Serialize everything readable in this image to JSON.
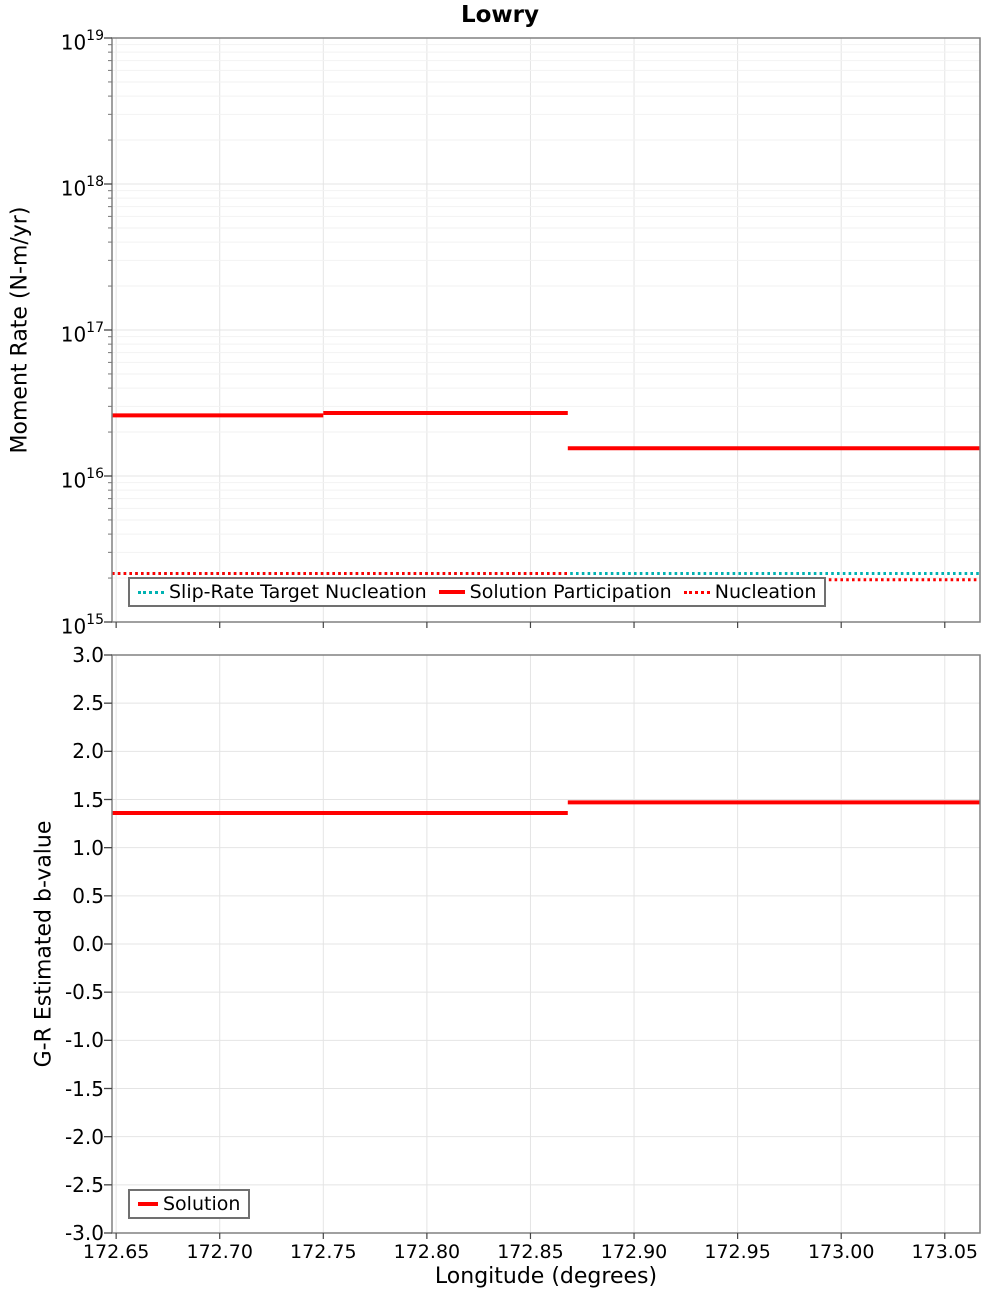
{
  "title": "Lowry",
  "colors": {
    "solution_red": "#ff0000",
    "target_teal": "#00b2b2",
    "grid_major": "#e4e4e4",
    "grid_minor": "#f2f2f2",
    "frame": "#808080",
    "tick": "#444444"
  },
  "chart_data": [
    {
      "type": "line",
      "title": "Lowry",
      "ylabel": "Moment Rate (N-m/yr)",
      "yscale": "log",
      "ylim": [
        1000000000000000.0,
        1e+19
      ],
      "ytick_exponents": [
        19,
        18,
        17,
        16,
        15
      ],
      "xlim": [
        172.648,
        173.067
      ],
      "xticks": [
        172.65,
        172.7,
        172.75,
        172.8,
        172.85,
        172.9,
        172.95,
        173.0,
        173.05
      ],
      "grid": true,
      "legend_position": "bottom-left",
      "series": [
        {
          "name": "Slip-Rate Target Nucleation",
          "color": "#00b2b2",
          "line_style": "dotted",
          "segments": [
            [
              [
                172.648,
                2150000000000000.0
              ],
              [
                173.067,
                2150000000000000.0
              ]
            ]
          ]
        },
        {
          "name": "Solution Participation",
          "color": "#ff0000",
          "line_style": "solid",
          "segments": [
            [
              [
                172.648,
                2.6e+16
              ],
              [
                172.75,
                2.6e+16
              ]
            ],
            [
              [
                172.75,
                2.7e+16
              ],
              [
                172.868,
                2.7e+16
              ]
            ],
            [
              [
                172.868,
                1.55e+16
              ],
              [
                173.067,
                1.55e+16
              ]
            ]
          ]
        },
        {
          "name": "Nucleation",
          "color": "#ff0000",
          "line_style": "dotted",
          "segments": [
            [
              [
                172.648,
                2150000000000000.0
              ],
              [
                172.868,
                2150000000000000.0
              ]
            ],
            [
              [
                172.868,
                1950000000000000.0
              ],
              [
                173.067,
                1950000000000000.0
              ]
            ]
          ]
        }
      ]
    },
    {
      "type": "line",
      "title": "",
      "ylabel": "G-R Estimated b-value",
      "xlabel": "Longitude (degrees)",
      "yscale": "linear",
      "ylim": [
        -3.0,
        3.0
      ],
      "ytick_step": 0.5,
      "ytick_labels": [
        "3.0",
        "2.5",
        "2.0",
        "1.5",
        "1.0",
        "0.5",
        "0.0",
        "-0.5",
        "-1.0",
        "-1.5",
        "-2.0",
        "-2.5",
        "-3.0"
      ],
      "xlim": [
        172.648,
        173.067
      ],
      "xticks": [
        172.65,
        172.7,
        172.75,
        172.8,
        172.85,
        172.9,
        172.95,
        173.0,
        173.05
      ],
      "xtick_labels": [
        "172.65",
        "172.70",
        "172.75",
        "172.80",
        "172.85",
        "172.90",
        "172.95",
        "173.00",
        "173.05"
      ],
      "grid": true,
      "legend_position": "bottom-left",
      "series": [
        {
          "name": "Solution",
          "color": "#ff0000",
          "line_style": "solid",
          "segments": [
            [
              [
                172.648,
                1.36
              ],
              [
                172.868,
                1.36
              ]
            ],
            [
              [
                172.868,
                1.47
              ],
              [
                173.067,
                1.47
              ]
            ]
          ]
        }
      ]
    }
  ]
}
